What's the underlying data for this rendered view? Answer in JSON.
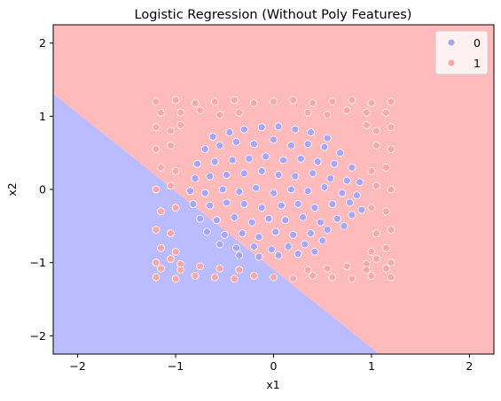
{
  "chart_data": {
    "type": "scatter",
    "title": "Logistic Regression (Without Poly Features)",
    "xlabel": "x1",
    "ylabel": "x2",
    "xlim": [
      -2.25,
      2.25
    ],
    "ylim": [
      -2.25,
      2.25
    ],
    "xticks": [
      -2,
      -1,
      0,
      1,
      2
    ],
    "yticks": [
      -2,
      -1,
      0,
      1,
      2
    ],
    "xtick_labels": [
      "−2",
      "−1",
      "0",
      "1",
      "2"
    ],
    "ytick_labels": [
      "−2",
      "−1",
      "0",
      "1",
      "2"
    ],
    "grid": false,
    "legend_position": "top-right",
    "decision_boundary": {
      "x": [
        -2.25,
        1.08
      ],
      "y": [
        1.31,
        -2.25
      ],
      "region_below": "0",
      "region_above": "1"
    },
    "region_colors": {
      "0": "#bbbbff",
      "1": "#ffbbbb"
    },
    "series": [
      {
        "name": "0",
        "color": "#a6a6ff",
        "description": "Points with x1^2 + x2^2 < ~0.95 (inner disc)",
        "x": [
          -0.62,
          -0.45,
          -0.3,
          -0.12,
          0.05,
          0.22,
          0.38,
          0.55,
          -0.7,
          -0.55,
          -0.38,
          -0.2,
          0.0,
          0.18,
          0.35,
          0.52,
          0.68,
          -0.78,
          -0.6,
          -0.42,
          -0.25,
          -0.08,
          0.1,
          0.28,
          0.45,
          0.62,
          0.8,
          -0.8,
          -0.65,
          -0.48,
          -0.3,
          -0.12,
          0.05,
          0.22,
          0.4,
          0.58,
          0.75,
          0.88,
          -0.85,
          -0.7,
          -0.52,
          -0.35,
          -0.18,
          0.0,
          0.18,
          0.35,
          0.52,
          0.7,
          0.85,
          -0.82,
          -0.65,
          -0.48,
          -0.3,
          -0.12,
          0.08,
          0.25,
          0.42,
          0.6,
          0.78,
          0.9,
          -0.75,
          -0.58,
          -0.4,
          -0.22,
          -0.05,
          0.12,
          0.3,
          0.48,
          0.65,
          0.8,
          -0.68,
          -0.5,
          -0.32,
          -0.15,
          0.02,
          0.2,
          0.38,
          0.55,
          0.72,
          -0.55,
          -0.38,
          -0.2,
          -0.02,
          0.15,
          0.32,
          0.5,
          -0.35,
          -0.15,
          0.05,
          0.25,
          0.42
        ],
        "y": [
          0.72,
          0.78,
          0.82,
          0.85,
          0.86,
          0.82,
          0.78,
          0.7,
          0.55,
          0.6,
          0.65,
          0.62,
          0.68,
          0.6,
          0.62,
          0.58,
          0.5,
          0.35,
          0.38,
          0.4,
          0.42,
          0.45,
          0.4,
          0.42,
          0.38,
          0.35,
          0.3,
          0.15,
          0.18,
          0.2,
          0.22,
          0.25,
          0.2,
          0.18,
          0.22,
          0.15,
          0.12,
          0.1,
          -0.02,
          -0.05,
          0.0,
          -0.03,
          0.02,
          -0.05,
          0.0,
          -0.02,
          0.03,
          -0.05,
          -0.08,
          -0.2,
          -0.22,
          -0.18,
          -0.2,
          -0.25,
          -0.22,
          -0.2,
          -0.25,
          -0.2,
          -0.18,
          -0.28,
          -0.4,
          -0.42,
          -0.38,
          -0.45,
          -0.4,
          -0.42,
          -0.38,
          -0.45,
          -0.4,
          -0.35,
          -0.58,
          -0.62,
          -0.6,
          -0.65,
          -0.58,
          -0.62,
          -0.6,
          -0.55,
          -0.5,
          -0.75,
          -0.8,
          -0.78,
          -0.82,
          -0.78,
          -0.75,
          -0.7,
          -0.9,
          -0.92,
          -0.9,
          -0.88,
          -0.85
        ]
      },
      {
        "name": "1",
        "color": "#ffa6a6",
        "description": "Points in outer square ring of [-1.25,1.25]^2",
        "x": [
          -1.2,
          -1.0,
          -0.8,
          -0.6,
          -0.4,
          -0.2,
          0.0,
          0.2,
          0.4,
          0.6,
          0.8,
          1.0,
          1.2,
          -1.15,
          -0.95,
          -0.75,
          -0.55,
          -0.35,
          0.35,
          0.55,
          0.75,
          0.95,
          1.15,
          -1.2,
          -1.05,
          -0.95,
          0.95,
          1.05,
          1.2,
          -1.2,
          -1.05,
          1.05,
          1.2,
          -1.15,
          -1.0,
          1.0,
          1.15,
          -1.2,
          -1.05,
          1.05,
          1.2,
          -1.15,
          -1.0,
          1.0,
          1.15,
          -1.2,
          -1.05,
          1.05,
          1.2,
          -1.15,
          -1.0,
          1.0,
          1.15,
          -1.2,
          -1.05,
          -0.95,
          0.95,
          1.05,
          1.2,
          -1.15,
          -0.95,
          -0.75,
          -0.55,
          -0.35,
          0.35,
          0.55,
          0.75,
          0.95,
          1.15,
          -1.2,
          -1.0,
          -0.8,
          -0.6,
          -0.4,
          -0.2,
          0.0,
          0.2,
          0.4,
          0.6,
          0.8,
          1.0,
          1.2
        ],
        "y": [
          1.2,
          1.22,
          1.18,
          1.2,
          1.22,
          1.18,
          1.2,
          1.22,
          1.18,
          1.2,
          1.22,
          1.18,
          1.2,
          1.05,
          1.05,
          1.08,
          1.02,
          1.05,
          1.05,
          1.02,
          1.08,
          1.05,
          1.05,
          0.85,
          0.8,
          0.88,
          0.88,
          0.8,
          0.85,
          0.55,
          0.6,
          0.6,
          0.55,
          0.3,
          0.25,
          0.25,
          0.3,
          0.0,
          0.05,
          0.05,
          0.0,
          -0.3,
          -0.25,
          -0.25,
          -0.3,
          -0.55,
          -0.6,
          -0.6,
          -0.55,
          -0.8,
          -0.85,
          -0.85,
          -0.8,
          -1.0,
          -0.95,
          -1.02,
          -1.02,
          -0.95,
          -1.0,
          -1.08,
          -1.1,
          -1.05,
          -1.08,
          -1.1,
          -1.1,
          -1.08,
          -1.05,
          -1.1,
          -1.08,
          -1.2,
          -1.22,
          -1.18,
          -1.2,
          -1.22,
          -1.18,
          -1.2,
          -1.22,
          -1.18,
          -1.2,
          -1.22,
          -1.18,
          -1.2
        ]
      }
    ]
  }
}
